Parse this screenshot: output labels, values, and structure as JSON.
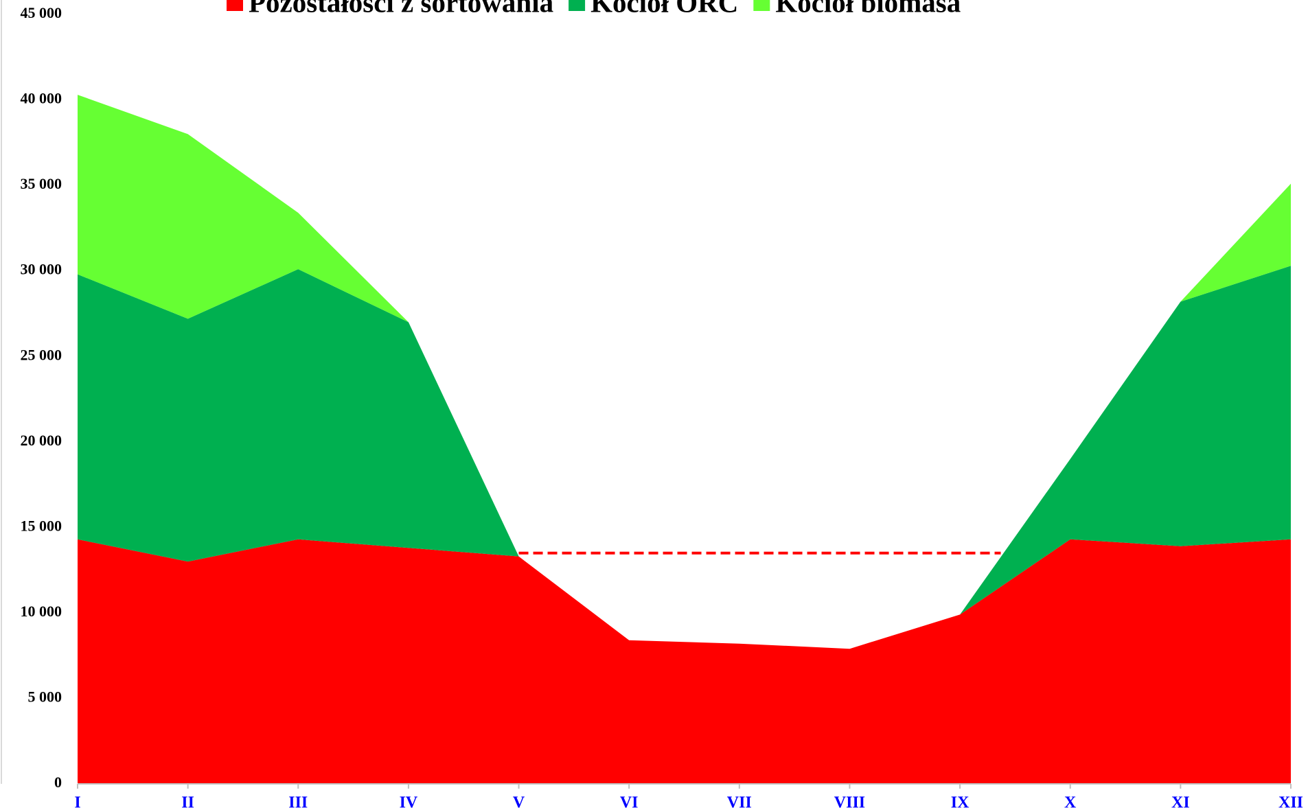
{
  "chart_data": {
    "type": "stacked_area",
    "categories": [
      "I",
      "II",
      "III",
      "IV",
      "V",
      "VI",
      "VII",
      "VIII",
      "IX",
      "X",
      "XI",
      "XII"
    ],
    "series": [
      {
        "name": "Pozostałości z sortowania",
        "color": "#ff0000",
        "values": [
          14300,
          13000,
          14300,
          13800,
          13300,
          8400,
          8200,
          7900,
          9900,
          14300,
          13900,
          14300
        ]
      },
      {
        "name": "Kocioł ORC",
        "color": "#00b050",
        "values": [
          15500,
          14200,
          15800,
          13200,
          0,
          0,
          0,
          0,
          0,
          4700,
          14300,
          16000
        ]
      },
      {
        "name": "Kocioł biomasa",
        "color": "#66ff33",
        "values": [
          10500,
          10800,
          3300,
          0,
          0,
          0,
          0,
          0,
          0,
          0,
          0,
          4800
        ]
      }
    ],
    "threshold": 13500,
    "ylim": [
      0,
      45000
    ],
    "yticks": [
      0,
      {
        "value": 5000,
        "label": "5 000"
      },
      {
        "value": 10000,
        "label": "10 000"
      },
      {
        "value": 15000,
        "label": "15 000"
      },
      {
        "value": 20000,
        "label": "20 000"
      },
      {
        "value": 25000,
        "label": "25 000"
      },
      {
        "value": 30000,
        "label": "30 000"
      },
      {
        "value": 35000,
        "label": "35 000"
      },
      {
        "value": 40000,
        "label": "40 000"
      },
      {
        "value": 45000,
        "label": "45 000"
      }
    ]
  }
}
